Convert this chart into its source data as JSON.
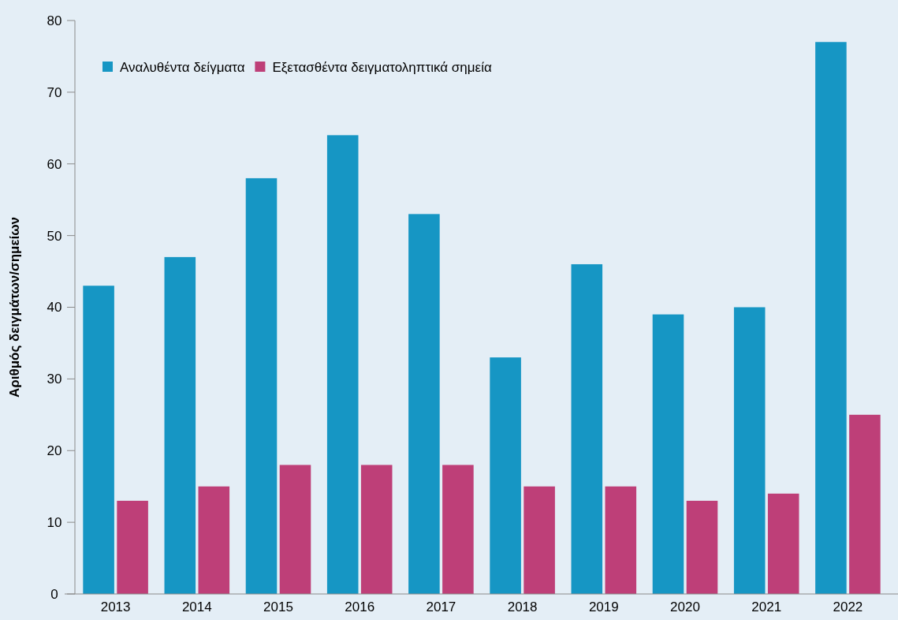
{
  "chart_data": {
    "type": "bar",
    "ylabel": "Αριθμός δειγμάτων/σημείων",
    "categories": [
      "2013",
      "2014",
      "2015",
      "2016",
      "2017",
      "2018",
      "2019",
      "2020",
      "2021",
      "2022"
    ],
    "series": [
      {
        "name": "Αναλυθέντα δείγματα",
        "color": "#1696c4",
        "values": [
          43,
          47,
          58,
          64,
          53,
          33,
          46,
          39,
          40,
          77
        ]
      },
      {
        "name": "Εξετασθέντα δειγματοληπτικά σημεία",
        "color": "#be3f78",
        "values": [
          13,
          15,
          18,
          18,
          18,
          15,
          15,
          13,
          14,
          25
        ]
      }
    ],
    "ylim": [
      0,
      80
    ],
    "yticks": [
      0,
      10,
      20,
      30,
      40,
      50,
      60,
      70,
      80
    ],
    "grid": false,
    "legend": "top left"
  }
}
